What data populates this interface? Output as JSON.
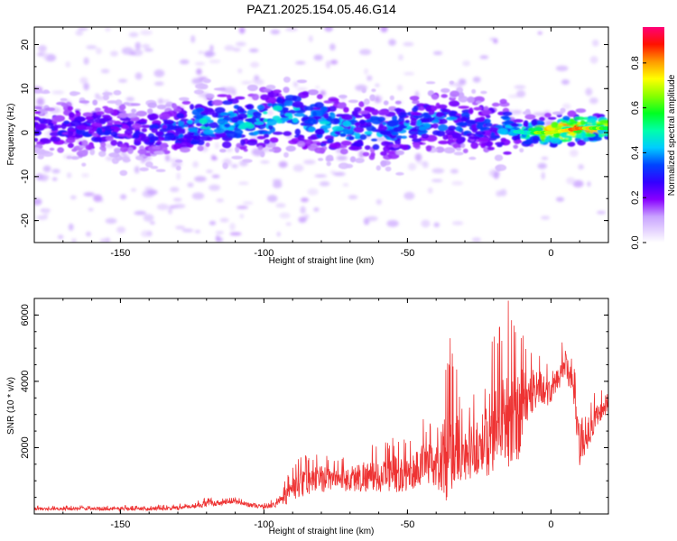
{
  "figure": {
    "title": "PAZ1.2025.154.05.46.G14"
  },
  "chart_data": [
    {
      "type": "heatmap",
      "name": "spectrogram",
      "xlabel": "Height of straight line (km)",
      "ylabel": "Frequency (Hz)",
      "xlim": [
        -180,
        20
      ],
      "ylim": [
        -25,
        24
      ],
      "xticks": [
        -150,
        -100,
        -50,
        0
      ],
      "xtick_labels": [
        "-150",
        "-100",
        "-50",
        "0"
      ],
      "yticks": [
        20,
        10,
        0,
        -10,
        -20
      ],
      "ytick_labels": [
        "20",
        "10",
        "0",
        "-10",
        "-20"
      ],
      "colorbar": {
        "label": "Normalized spectral amplitude",
        "range": [
          0.0,
          0.96
        ],
        "ticks": [
          0.0,
          0.2,
          0.4,
          0.6,
          0.8
        ],
        "tick_labels": [
          "0.0",
          "0.2",
          "0.4",
          "0.6",
          "0.8"
        ],
        "colormap": "rainbow (white-lavender → violet → blue → cyan → green → yellow → orange → red → magenta)"
      },
      "ridge": {
        "description": "dominant energy band near 0–4 Hz across height, strongest between -10 and 20 km",
        "x": [
          -180,
          -160,
          -140,
          -120,
          -100,
          -90,
          -80,
          -70,
          -60,
          -50,
          -40,
          -30,
          -20,
          -10,
          0,
          10,
          20
        ],
        "y": [
          1,
          1,
          0,
          2,
          3,
          4,
          2,
          1,
          0,
          1,
          3,
          2,
          1,
          0,
          0,
          1,
          1
        ],
        "peak_amplitude": [
          0.25,
          0.3,
          0.3,
          0.45,
          0.45,
          0.5,
          0.45,
          0.4,
          0.4,
          0.4,
          0.4,
          0.35,
          0.35,
          0.5,
          0.85,
          0.85,
          0.7
        ]
      }
    },
    {
      "type": "line",
      "name": "snr",
      "xlabel": "Height of straight line (km)",
      "ylabel": "SNR (10 * v/v)",
      "xlim": [
        -180,
        20
      ],
      "ylim": [
        0,
        6500
      ],
      "xticks": [
        -150,
        -100,
        -50,
        0
      ],
      "xtick_labels": [
        "-150",
        "-100",
        "-50",
        "0"
      ],
      "yticks": [
        2000,
        4000,
        6000
      ],
      "ytick_labels": [
        "2000",
        "4000",
        "6000"
      ],
      "color": "#ee3333",
      "envelope": {
        "x": [
          -180,
          -170,
          -160,
          -150,
          -140,
          -130,
          -120,
          -110,
          -100,
          -95,
          -90,
          -85,
          -80,
          -75,
          -70,
          -65,
          -60,
          -55,
          -50,
          -45,
          -40,
          -35,
          -30,
          -25,
          -20,
          -15,
          -12,
          -10,
          -5,
          0,
          5,
          8,
          10,
          15,
          20
        ],
        "y_mean": [
          150,
          150,
          160,
          150,
          150,
          170,
          300,
          350,
          200,
          300,
          700,
          900,
          1000,
          1050,
          1000,
          1100,
          1050,
          1150,
          1100,
          1400,
          1400,
          1700,
          1700,
          1900,
          2400,
          2800,
          2600,
          3200,
          3800,
          3600,
          4500,
          3600,
          1800,
          2800,
          3300
        ],
        "y_peak": [
          250,
          250,
          270,
          280,
          250,
          300,
          500,
          500,
          350,
          500,
          1600,
          1800,
          1900,
          1700,
          1900,
          2200,
          2000,
          2400,
          2200,
          2900,
          2800,
          5400,
          3400,
          3800,
          5500,
          6500,
          6100,
          5700,
          5100,
          4400,
          5400,
          4600,
          2800,
          3800,
          3700
        ]
      }
    }
  ]
}
